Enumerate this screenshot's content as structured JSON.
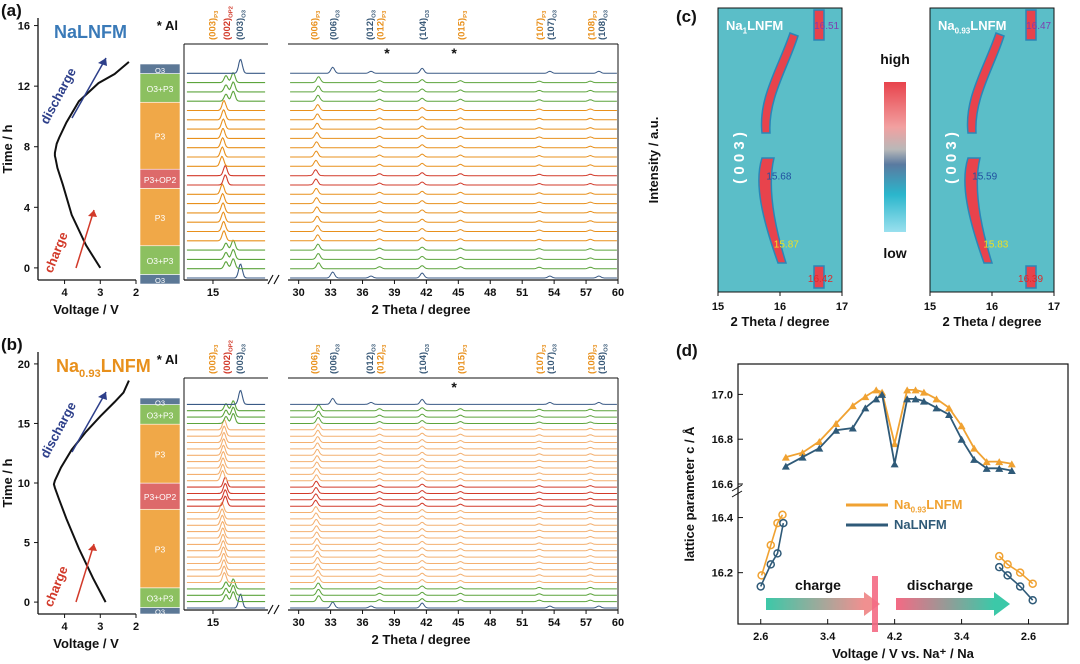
{
  "chart_data": [
    {
      "panel": "(a)",
      "type": "line",
      "title": "NaLNFM",
      "xlabel": "Voltage / V",
      "ylabel": "Time / h",
      "xlim": [
        4.8,
        2.0
      ],
      "ylim": [
        -0.8,
        16.5
      ],
      "xticks": [
        4,
        3,
        2
      ],
      "yticks": [
        0,
        4,
        8,
        12,
        16
      ],
      "annotations": [
        "charge",
        "discharge"
      ],
      "series": [
        {
          "name": "charge-discharge curve",
          "x": [
            3.0,
            3.4,
            3.8,
            4.05,
            4.2,
            4.25,
            4.27,
            4.27,
            4.22,
            4.15,
            3.95,
            3.6,
            3.05,
            2.6,
            2.4,
            2.2
          ],
          "y": [
            0.0,
            1.5,
            3.5,
            5.5,
            6.6,
            7.2,
            7.4,
            7.6,
            8.2,
            8.6,
            9.6,
            11.0,
            12.2,
            12.8,
            13.2,
            13.6
          ]
        }
      ]
    },
    {
      "panel": "(a)",
      "type": "line",
      "xlabel": "2 Theta / degree",
      "ylabel": "",
      "xlim": [
        13,
        60
      ],
      "xticks": [
        15,
        30,
        33,
        36,
        39,
        42,
        45,
        48,
        51,
        54,
        57,
        60
      ],
      "marker_note": "* Al",
      "phases": [
        {
          "label": "O3",
          "n": 1
        },
        {
          "label": "O3+P3",
          "n": 3
        },
        {
          "label": "P3",
          "n": 6
        },
        {
          "label": "P3+OP2",
          "n": 2
        },
        {
          "label": "P3",
          "n": 7
        },
        {
          "label": "O3+P3",
          "n": 3
        },
        {
          "label": "O3",
          "n": 1
        }
      ],
      "peak_labels": [
        {
          "text": "(003)",
          "sub": "P3",
          "x": 14.9,
          "color": "#e8901c"
        },
        {
          "text": "(002)",
          "sub": "OP2",
          "x": 15.9,
          "color": "#d23a2a"
        },
        {
          "text": "(003)",
          "sub": "O3",
          "x": 16.8,
          "color": "#3a5a78"
        },
        {
          "text": "(006)",
          "sub": "P3",
          "x": 31.4,
          "color": "#e8901c"
        },
        {
          "text": "(006)",
          "sub": "O3",
          "x": 33.2,
          "color": "#3a5a78"
        },
        {
          "text": "(012)",
          "sub": "O3",
          "x": 36.6,
          "color": "#3a5a78"
        },
        {
          "text": "(012)",
          "sub": "P3",
          "x": 37.6,
          "color": "#e8901c"
        },
        {
          "text": "(104)",
          "sub": "O3",
          "x": 41.6,
          "color": "#3a5a78"
        },
        {
          "text": "(015)",
          "sub": "P3",
          "x": 45.2,
          "color": "#e8901c"
        },
        {
          "text": "(107)",
          "sub": "P3",
          "x": 52.6,
          "color": "#e8901c"
        },
        {
          "text": "(107)",
          "sub": "O3",
          "x": 53.6,
          "color": "#3a5a78"
        },
        {
          "text": "(108)",
          "sub": "P3",
          "x": 57.4,
          "color": "#e8901c"
        },
        {
          "text": "(108)",
          "sub": "O3",
          "x": 58.4,
          "color": "#3a5a78"
        }
      ],
      "al_stars": [
        38.3,
        44.6
      ]
    },
    {
      "panel": "(b)",
      "type": "line",
      "title": "Na",
      "title_sub": "0.93",
      "title_tail": "LNFM",
      "xlabel": "Voltage / V",
      "ylabel": "Time / h",
      "xlim": [
        4.8,
        2.0
      ],
      "ylim": [
        -1.0,
        21.0
      ],
      "xticks": [
        4,
        3,
        2
      ],
      "yticks": [
        0,
        5,
        10,
        15,
        20
      ],
      "annotations": [
        "charge",
        "discharge"
      ],
      "series": [
        {
          "name": "charge-discharge curve",
          "x": [
            2.85,
            3.2,
            3.6,
            3.95,
            4.15,
            4.27,
            4.3,
            4.27,
            4.1,
            3.8,
            3.4,
            3.0,
            2.6,
            2.35,
            2.2
          ],
          "y": [
            0.0,
            2.0,
            4.5,
            7.0,
            8.6,
            9.6,
            9.9,
            10.2,
            11.3,
            12.8,
            14.3,
            15.6,
            16.8,
            17.6,
            18.6
          ]
        }
      ]
    },
    {
      "panel": "(b)",
      "type": "line",
      "xlabel": "2 Theta / degree",
      "ylabel": "",
      "xlim": [
        13,
        60
      ],
      "xticks": [
        15,
        30,
        33,
        36,
        39,
        42,
        45,
        48,
        51,
        54,
        57,
        60
      ],
      "marker_note": "* Al",
      "phases": [
        {
          "label": "O3",
          "n": 1
        },
        {
          "label": "O3+P3",
          "n": 3
        },
        {
          "label": "P3",
          "n": 12
        },
        {
          "label": "P3+OP2",
          "n": 4
        },
        {
          "label": "P3",
          "n": 9
        },
        {
          "label": "O3+P3",
          "n": 3
        },
        {
          "label": "O3",
          "n": 1
        }
      ],
      "peak_labels": [
        {
          "text": "(003)",
          "sub": "P3",
          "x": 14.9,
          "color": "#e8901c"
        },
        {
          "text": "(002)",
          "sub": "OP2",
          "x": 15.9,
          "color": "#d23a2a"
        },
        {
          "text": "(003)",
          "sub": "O3",
          "x": 16.8,
          "color": "#3a5a78"
        },
        {
          "text": "(006)",
          "sub": "P3",
          "x": 31.4,
          "color": "#e8901c"
        },
        {
          "text": "(006)",
          "sub": "O3",
          "x": 33.2,
          "color": "#3a5a78"
        },
        {
          "text": "(012)",
          "sub": "O3",
          "x": 36.6,
          "color": "#3a5a78"
        },
        {
          "text": "(012)",
          "sub": "P3",
          "x": 37.6,
          "color": "#e8901c"
        },
        {
          "text": "(104)",
          "sub": "O3",
          "x": 41.6,
          "color": "#3a5a78"
        },
        {
          "text": "(015)",
          "sub": "P3",
          "x": 45.2,
          "color": "#e8901c"
        },
        {
          "text": "(107)",
          "sub": "P3",
          "x": 52.6,
          "color": "#e8901c"
        },
        {
          "text": "(107)",
          "sub": "O3",
          "x": 53.6,
          "color": "#3a5a78"
        },
        {
          "text": "(108)",
          "sub": "P3",
          "x": 57.4,
          "color": "#e8901c"
        },
        {
          "text": "(108)",
          "sub": "O3",
          "x": 58.4,
          "color": "#3a5a78"
        }
      ],
      "al_stars": [
        44.6
      ]
    },
    {
      "panel": "(c)",
      "type": "heatmap",
      "xlabel": "2 Theta / degree",
      "ylabel": "Intensity / a.u.",
      "xlim": [
        15,
        17
      ],
      "xticks": [
        15,
        16,
        17
      ],
      "colorbar": {
        "high": "high",
        "low": "low"
      },
      "reflection_label": "(003)",
      "maps": [
        {
          "title": "Na",
          "title_sub": "1",
          "title_tail": "LNFM",
          "values": [
            {
              "text": "16.51",
              "x": 16.55,
              "y": 0.94,
              "color": "#7c3fb0"
            },
            {
              "text": "15.68",
              "x": 15.78,
              "y": 0.41,
              "color": "#2050a0"
            },
            {
              "text": "15.87",
              "x": 15.9,
              "y": 0.17,
              "color": "#f0e020"
            },
            {
              "text": "16.42",
              "x": 16.45,
              "y": 0.05,
              "color": "#e02828"
            }
          ]
        },
        {
          "title": "Na",
          "title_sub": "0.93",
          "title_tail": "LNFM",
          "values": [
            {
              "text": "16.47",
              "x": 16.55,
              "y": 0.94,
              "color": "#7c3fb0"
            },
            {
              "text": "15.59",
              "x": 15.68,
              "y": 0.41,
              "color": "#2050a0"
            },
            {
              "text": "15.83",
              "x": 15.86,
              "y": 0.17,
              "color": "#f0e020"
            },
            {
              "text": "16.39",
              "x": 16.42,
              "y": 0.05,
              "color": "#e02828"
            }
          ]
        }
      ]
    },
    {
      "panel": "(d)",
      "type": "line",
      "xlabel": "Voltage / V vs. Na⁺ / Na",
      "ylabel": "lattice parameter c / Å",
      "xticks": [
        "2.6",
        "3.4",
        "4.2",
        "3.4",
        "2.6"
      ],
      "yticks_upper": [
        16.6,
        16.8,
        17.0
      ],
      "yticks_lower": [
        16.2,
        16.4
      ],
      "annotations": [
        "charge",
        "discharge"
      ],
      "series": [
        {
          "name": "Na0.93LNFM",
          "label": "Na",
          "label_sub": "0.93",
          "label_tail": "LNFM",
          "color": "#f0a232",
          "upper": [
            [
              2.9,
              16.72
            ],
            [
              3.1,
              16.74
            ],
            [
              3.3,
              16.79
            ],
            [
              3.5,
              16.87
            ],
            [
              3.7,
              16.95
            ],
            [
              3.85,
              16.99
            ],
            [
              3.98,
              17.02
            ],
            [
              4.05,
              17.01
            ],
            [
              4.2,
              16.78
            ],
            [
              4.35,
              17.02
            ],
            [
              4.45,
              17.02
            ],
            [
              4.55,
              17.01
            ],
            [
              4.7,
              16.98
            ],
            [
              4.85,
              16.94
            ],
            [
              5.0,
              16.86
            ],
            [
              5.15,
              16.76
            ],
            [
              5.3,
              16.7
            ],
            [
              5.45,
              16.7
            ],
            [
              5.6,
              16.69
            ]
          ],
          "lower_charge": [
            [
              2.61,
              16.19
            ],
            [
              2.72,
              16.3
            ],
            [
              2.8,
              16.38
            ],
            [
              2.86,
              16.41
            ]
          ],
          "lower_discharge": [
            [
              5.45,
              16.26
            ],
            [
              5.55,
              16.23
            ],
            [
              5.7,
              16.2
            ],
            [
              5.85,
              16.16
            ]
          ]
        },
        {
          "name": "NaLNFM",
          "label": "NaLNFM",
          "label_sub": "",
          "label_tail": "",
          "color": "#2f5a78",
          "upper": [
            [
              2.9,
              16.68
            ],
            [
              3.1,
              16.72
            ],
            [
              3.3,
              16.76
            ],
            [
              3.5,
              16.84
            ],
            [
              3.7,
              16.85
            ],
            [
              3.85,
              16.94
            ],
            [
              3.98,
              16.98
            ],
            [
              4.05,
              17.0
            ],
            [
              4.2,
              16.69
            ],
            [
              4.35,
              16.98
            ],
            [
              4.45,
              16.98
            ],
            [
              4.55,
              16.97
            ],
            [
              4.7,
              16.94
            ],
            [
              4.85,
              16.91
            ],
            [
              5.0,
              16.8
            ],
            [
              5.15,
              16.71
            ],
            [
              5.3,
              16.67
            ],
            [
              5.45,
              16.67
            ],
            [
              5.6,
              16.66
            ]
          ],
          "lower_charge": [
            [
              2.6,
              16.15
            ],
            [
              2.72,
              16.23
            ],
            [
              2.8,
              16.27
            ],
            [
              2.87,
              16.38
            ]
          ],
          "lower_discharge": [
            [
              5.45,
              16.22
            ],
            [
              5.55,
              16.19
            ],
            [
              5.7,
              16.15
            ],
            [
              5.85,
              16.1
            ]
          ]
        }
      ]
    }
  ]
}
